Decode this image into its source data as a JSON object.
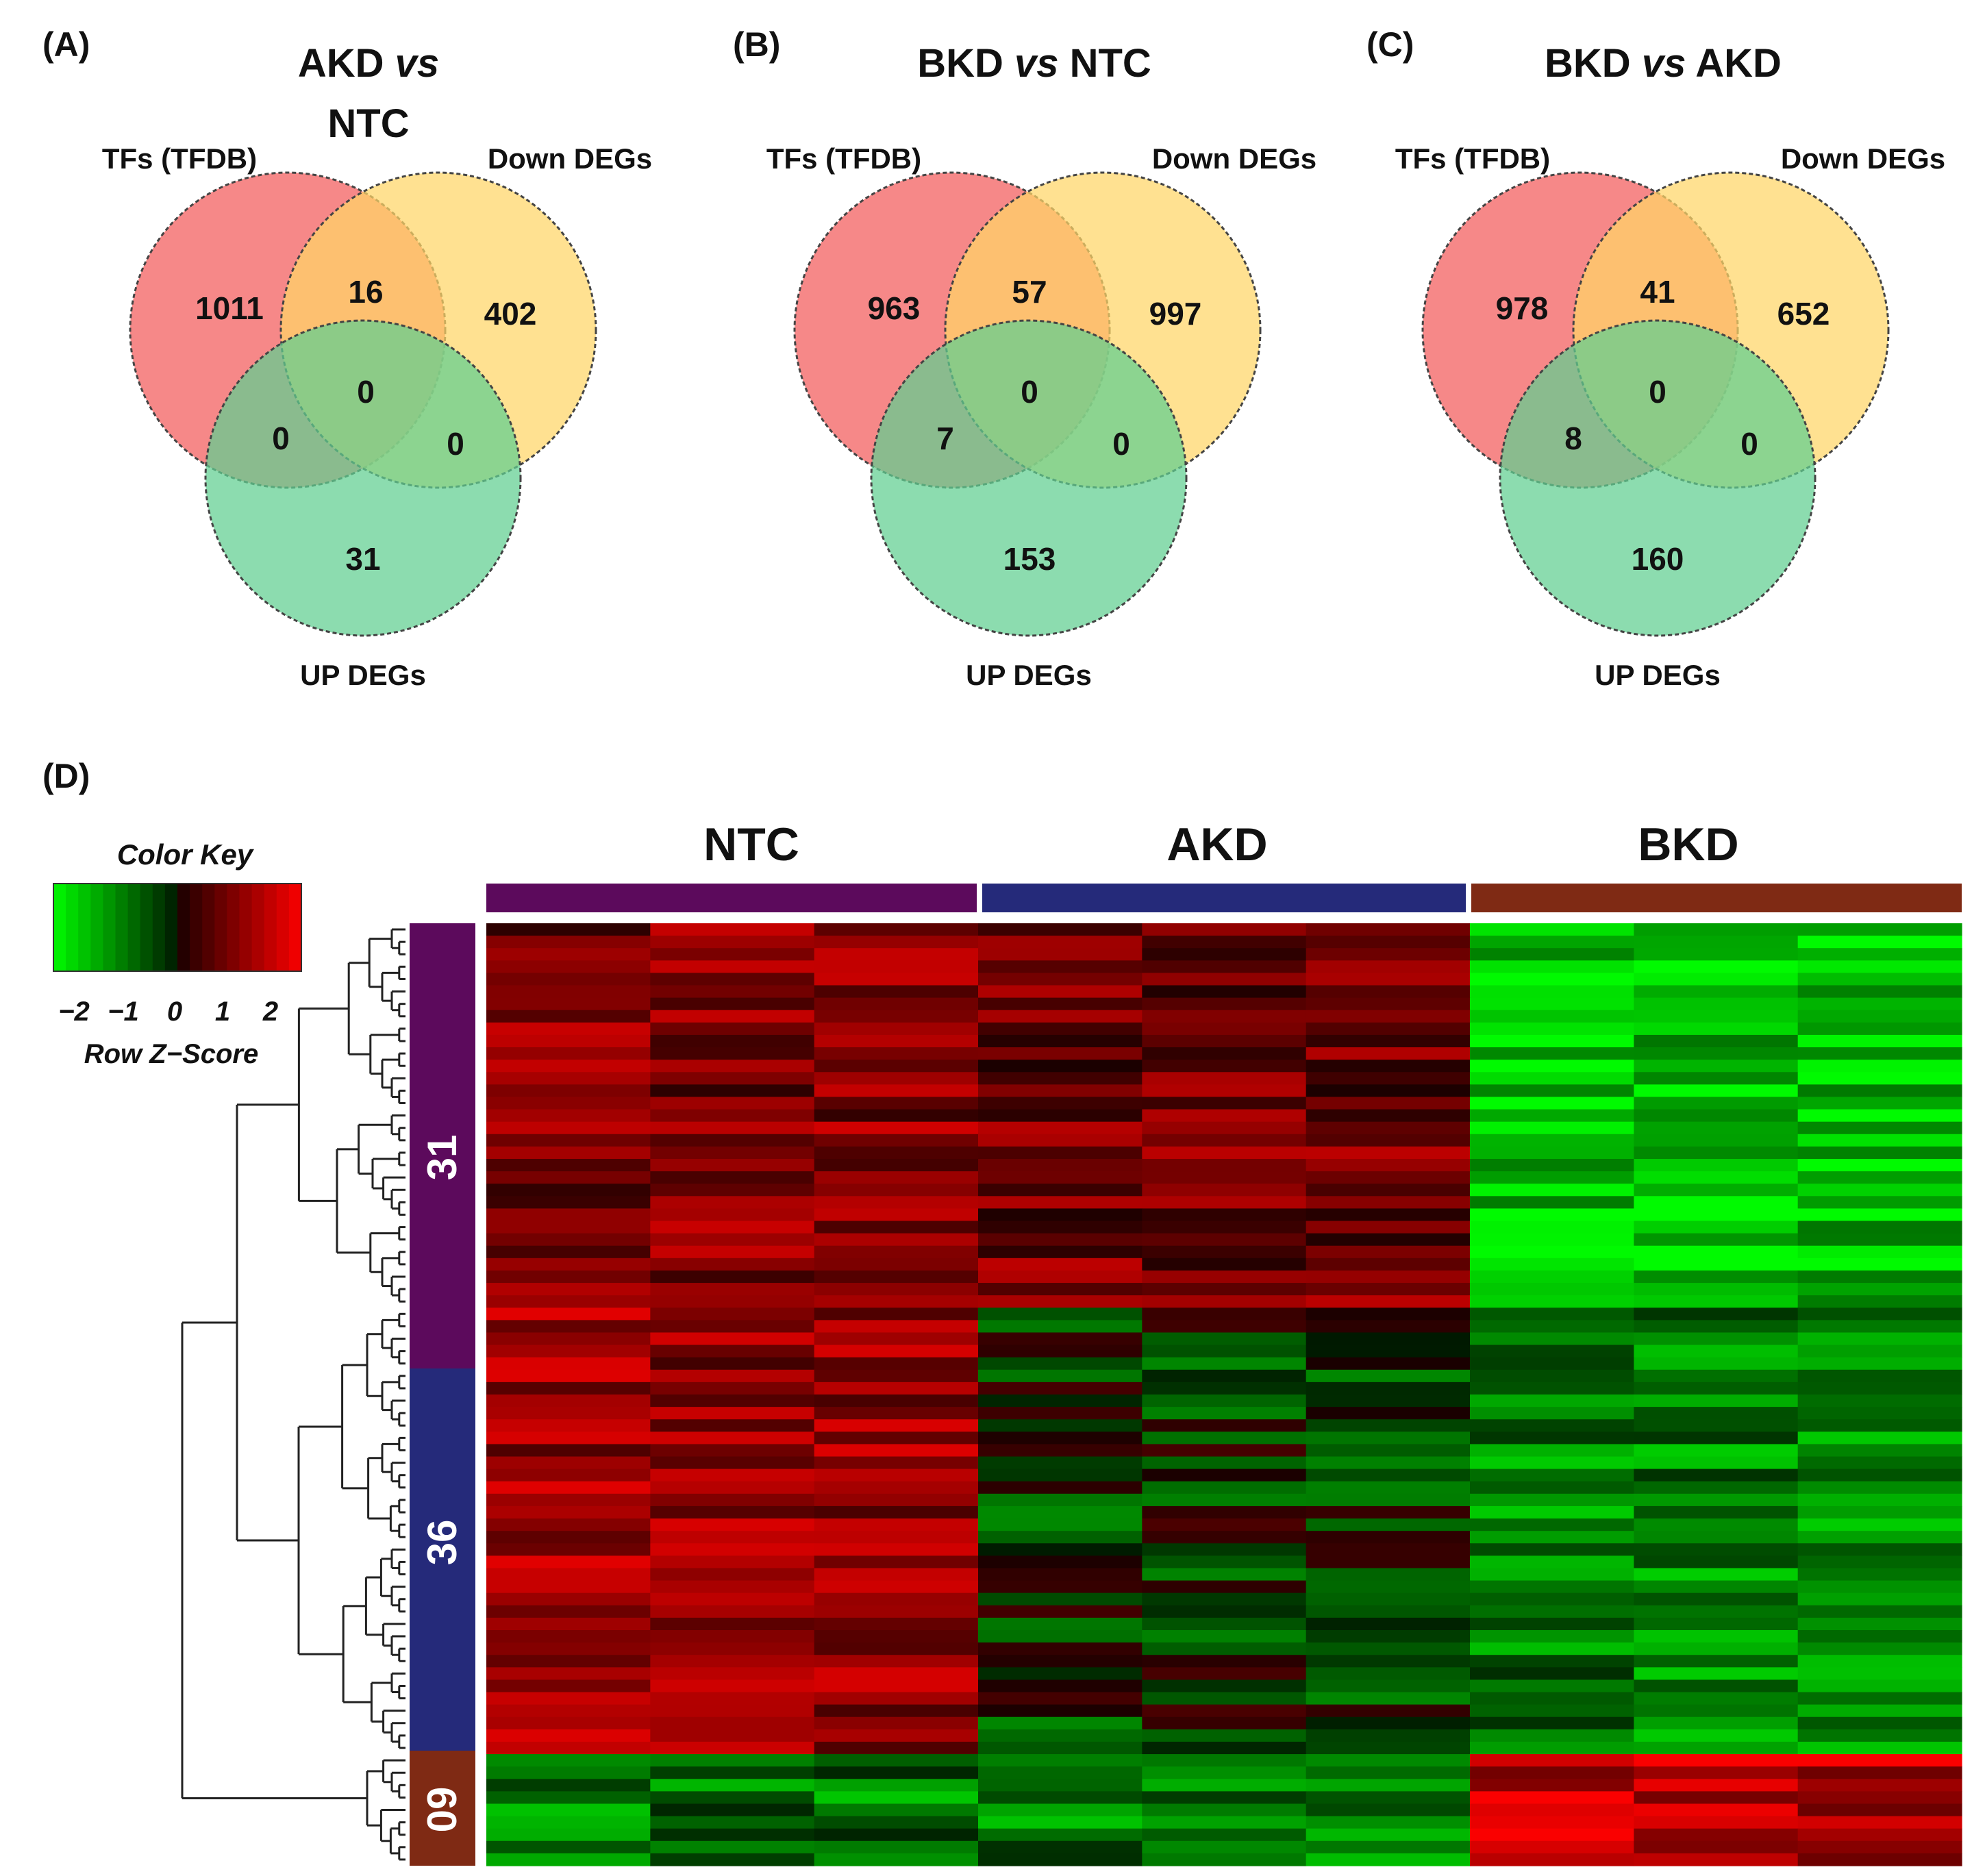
{
  "venn_panels": [
    {
      "tag": "(A)",
      "title_lines": [
        "AKD vs",
        "NTC"
      ],
      "set_labels": {
        "tfs": "TFs (TFDB)",
        "down": "Down DEGs",
        "up": "UP DEGs"
      },
      "counts": {
        "tfs_only": "1011",
        "tfs_down": "16",
        "down_only": "402",
        "all_three": "0",
        "tfs_up": "0",
        "down_up": "0",
        "up_only": "31"
      }
    },
    {
      "tag": "(B)",
      "title_lines": [
        "BKD vs NTC"
      ],
      "set_labels": {
        "tfs": "TFs (TFDB)",
        "down": "Down DEGs",
        "up": "UP DEGs"
      },
      "counts": {
        "tfs_only": "963",
        "tfs_down": "57",
        "down_only": "997",
        "all_three": "0",
        "tfs_up": "7",
        "down_up": "0",
        "up_only": "153"
      }
    },
    {
      "tag": "(C)",
      "title_lines": [
        "BKD vs AKD"
      ],
      "set_labels": {
        "tfs": "TFs (TFDB)",
        "down": "Down DEGs",
        "up": "UP DEGs"
      },
      "counts": {
        "tfs_only": "978",
        "tfs_down": "41",
        "down_only": "652",
        "all_three": "0",
        "tfs_up": "8",
        "down_up": "0",
        "up_only": "160"
      }
    }
  ],
  "colors": {
    "tfs": "#f25a5a",
    "down": "#ffd566",
    "up": "#5fcf90",
    "ntc_bar": "#5c0a5c",
    "akd_bar": "#252a7a",
    "bkd_bar": "#7f2a14",
    "cluster_31": "#5c0a5c",
    "cluster_36": "#252a7a",
    "cluster_09": "#7f2a14"
  },
  "heatmap": {
    "tag": "(D)",
    "color_key": {
      "title": "Color Key",
      "ticks": [
        "−2",
        "−1",
        "0",
        "1",
        "2"
      ],
      "subtitle": "Row Z−Score"
    },
    "groups": [
      "NTC",
      "AKD",
      "BKD"
    ],
    "samples_per_group": 3,
    "clusters": [
      {
        "label": "31",
        "rows": 31
      },
      {
        "label": "36",
        "rows": 36
      },
      {
        "label": "09",
        "rows": 9
      }
    ]
  }
}
